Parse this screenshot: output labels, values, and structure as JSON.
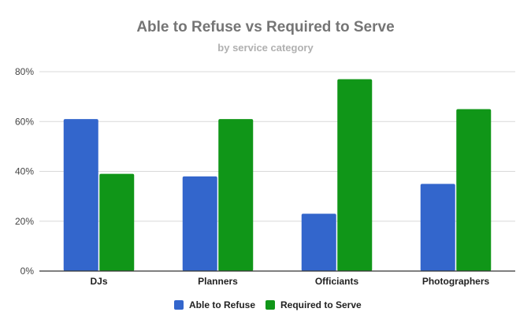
{
  "chart_data": {
    "type": "bar",
    "title": "Able to Refuse vs Required to Serve",
    "subtitle": "by service category",
    "xlabel": "",
    "ylabel": "",
    "categories": [
      "DJs",
      "Planners",
      "Officiants",
      "Photographers"
    ],
    "series": [
      {
        "name": "Able to Refuse",
        "color": "#3366cc",
        "values": [
          61,
          38,
          23,
          35
        ]
      },
      {
        "name": "Required to Serve",
        "color": "#109618",
        "values": [
          39,
          61,
          77,
          65
        ]
      }
    ],
    "ylim": [
      0,
      80
    ],
    "yticks": [
      0,
      20,
      40,
      60,
      80
    ],
    "ytick_labels": [
      "0%",
      "20%",
      "40%",
      "60%",
      "80%"
    ],
    "grid": true,
    "legend_position": "bottom"
  }
}
